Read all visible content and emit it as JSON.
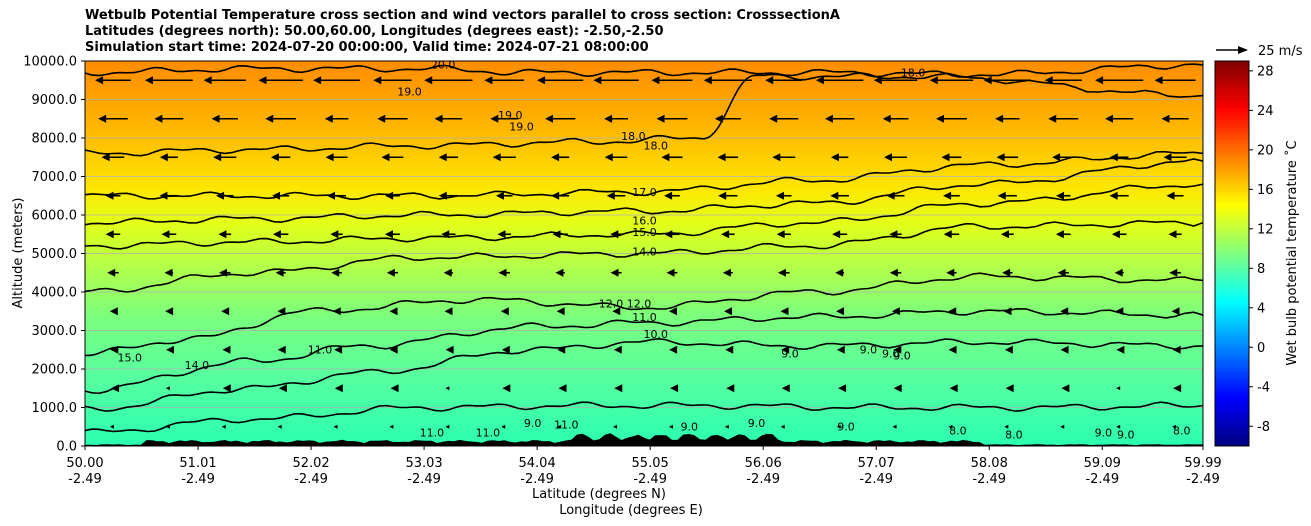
{
  "title_lines": [
    "Wetbulb Potential Temperature cross section and wind vectors parallel to cross section: CrosssectionA",
    "Latitudes (degrees north): 50.00,60.00, Longitudes (degrees east): -2.50,-2.50",
    "Simulation start time: 2024-07-20 00:00:00, Valid time: 2024-07-21 08:00:00"
  ],
  "quiver_key": "25 m/s",
  "colorbar": {
    "label": "Wet bulb potential temperature ˚C",
    "range": [
      -10,
      29
    ],
    "ticks": [
      "-8",
      "-4",
      "0",
      "4",
      "8",
      "12",
      "16",
      "20",
      "24",
      "28"
    ],
    "tick_values": [
      -8,
      -4,
      0,
      4,
      8,
      12,
      16,
      20,
      24,
      28
    ],
    "colormap": "jet"
  },
  "chart_data": {
    "type": "heatmap",
    "subtype": "contourf with contour lines and quiver",
    "ylabel": "Altitude (meters)",
    "xlabel_lines": [
      "Latitude (degrees N)",
      "Longitude (degrees E)"
    ],
    "xlim": [
      50.0,
      59.99
    ],
    "ylim": [
      0,
      10000
    ],
    "grid": "horizontal",
    "y_ticks": [
      "0.0",
      "1000.0",
      "2000.0",
      "3000.0",
      "4000.0",
      "5000.0",
      "6000.0",
      "7000.0",
      "8000.0",
      "9000.0",
      "10000.0"
    ],
    "y_tick_values": [
      0,
      1000,
      2000,
      3000,
      4000,
      5000,
      6000,
      7000,
      8000,
      9000,
      10000
    ],
    "x_ticks_lat": [
      "50.00",
      "51.01",
      "52.02",
      "53.03",
      "54.04",
      "55.05",
      "56.06",
      "57.07",
      "58.08",
      "59.09",
      "59.99"
    ],
    "x_ticks_lon": [
      "-2.49",
      "-2.49",
      "-2.49",
      "-2.49",
      "-2.49",
      "-2.49",
      "-2.49",
      "-2.49",
      "-2.49",
      "-2.49",
      "-2.49"
    ],
    "x_tick_values": [
      50.0,
      51.01,
      52.02,
      53.03,
      54.04,
      55.05,
      56.06,
      57.07,
      58.08,
      59.09,
      59.99
    ],
    "contours": [
      {
        "level": 9,
        "points": [
          [
            50.0,
            350
          ],
          [
            51.5,
            700
          ],
          [
            53.0,
            1000
          ],
          [
            54.5,
            1050
          ],
          [
            55.5,
            1050
          ],
          [
            57.0,
            1000
          ],
          [
            58.5,
            1000
          ],
          [
            59.99,
            1050
          ]
        ]
      },
      {
        "level": 10,
        "points": [
          [
            50.0,
            950
          ],
          [
            51.5,
            1500
          ],
          [
            52.5,
            1900
          ],
          [
            54.0,
            2500
          ],
          [
            55.0,
            2700
          ],
          [
            56.5,
            2600
          ],
          [
            58.0,
            2700
          ],
          [
            59.99,
            2600
          ]
        ]
      },
      {
        "level": 11,
        "points": [
          [
            50.0,
            1450
          ],
          [
            51.5,
            2200
          ],
          [
            52.5,
            2600
          ],
          [
            54.0,
            3100
          ],
          [
            55.0,
            3200
          ],
          [
            56.5,
            3350
          ],
          [
            58.0,
            3500
          ],
          [
            59.99,
            3400
          ]
        ]
      },
      {
        "level": 12,
        "points": [
          [
            50.0,
            2400
          ],
          [
            51.0,
            2800
          ],
          [
            52.0,
            3500
          ],
          [
            53.5,
            3800
          ],
          [
            55.0,
            3600
          ],
          [
            56.5,
            4000
          ],
          [
            58.0,
            4400
          ],
          [
            59.99,
            4300
          ]
        ]
      },
      {
        "level": 14,
        "points": [
          [
            50.0,
            4000
          ],
          [
            51.5,
            4500
          ],
          [
            53.0,
            4900
          ],
          [
            55.0,
            5000
          ],
          [
            56.5,
            5200
          ],
          [
            58.0,
            5700
          ],
          [
            59.99,
            5800
          ]
        ]
      },
      {
        "level": 15,
        "points": [
          [
            50.0,
            5200
          ],
          [
            51.5,
            5300
          ],
          [
            53.0,
            5400
          ],
          [
            55.0,
            5500
          ],
          [
            56.5,
            5800
          ],
          [
            58.0,
            6300
          ],
          [
            59.99,
            6800
          ]
        ]
      },
      {
        "level": 16,
        "points": [
          [
            50.0,
            5800
          ],
          [
            51.5,
            5900
          ],
          [
            53.0,
            6000
          ],
          [
            55.0,
            6100
          ],
          [
            56.5,
            6300
          ],
          [
            58.0,
            6800
          ],
          [
            59.99,
            7400
          ]
        ]
      },
      {
        "level": 17,
        "points": [
          [
            50.0,
            6500
          ],
          [
            51.5,
            6500
          ],
          [
            53.0,
            6500
          ],
          [
            55.0,
            6600
          ],
          [
            56.5,
            6900
          ],
          [
            58.0,
            7300
          ],
          [
            59.99,
            7600
          ]
        ]
      },
      {
        "level": 18,
        "points": [
          [
            50.0,
            7600
          ],
          [
            51.5,
            7700
          ],
          [
            53.0,
            7800
          ],
          [
            54.5,
            7900
          ],
          [
            55.5,
            8000
          ],
          [
            56.0,
            9600
          ],
          [
            57.5,
            9600
          ],
          [
            59.99,
            9100
          ]
        ]
      },
      {
        "level": 19,
        "points": [
          [
            50.0,
            9700
          ],
          [
            51.5,
            9800
          ],
          [
            53.0,
            9800
          ],
          [
            54.0,
            9700
          ],
          [
            55.0,
            9700
          ],
          [
            56.5,
            9700
          ],
          [
            58.0,
            9650
          ],
          [
            59.99,
            9900
          ]
        ]
      }
    ],
    "contour_labels": [
      "20.0",
      "19.0",
      "19.0",
      "19.0",
      "18.0",
      "18.0",
      "18.0",
      "17.0",
      "16.0",
      "15.0",
      "14.0",
      "12.0",
      "12.0",
      "11.0",
      "11.0",
      "10.0",
      "9.0",
      "9.0",
      "9.0",
      "9.0",
      "15.0",
      "14.0",
      "11.0",
      "11.0",
      "9.0",
      "9.0",
      "9.0",
      "9.0",
      "8.0",
      "8.0",
      "9.0",
      "9.0",
      "8.0",
      "11.0"
    ],
    "wind_speed_profile": [
      {
        "altitude": 9500,
        "speed": 25
      },
      {
        "altitude": 8500,
        "speed": 16
      },
      {
        "altitude": 7500,
        "speed": 12
      },
      {
        "altitude": 6500,
        "speed": 10
      },
      {
        "altitude": 5500,
        "speed": 8
      },
      {
        "altitude": 4500,
        "speed": 6
      },
      {
        "altitude": 3500,
        "speed": 4
      },
      {
        "altitude": 2500,
        "speed": 3
      },
      {
        "altitude": 1500,
        "speed": 2
      },
      {
        "altitude": 500,
        "speed": 1
      }
    ],
    "wind_direction": "southward (negative)",
    "terrain": "black filled orography along bottom",
    "colors": {
      "contour": "#000000",
      "arrow": "#000000",
      "terrain": "#000000",
      "grid": "#b0b0b0"
    }
  }
}
